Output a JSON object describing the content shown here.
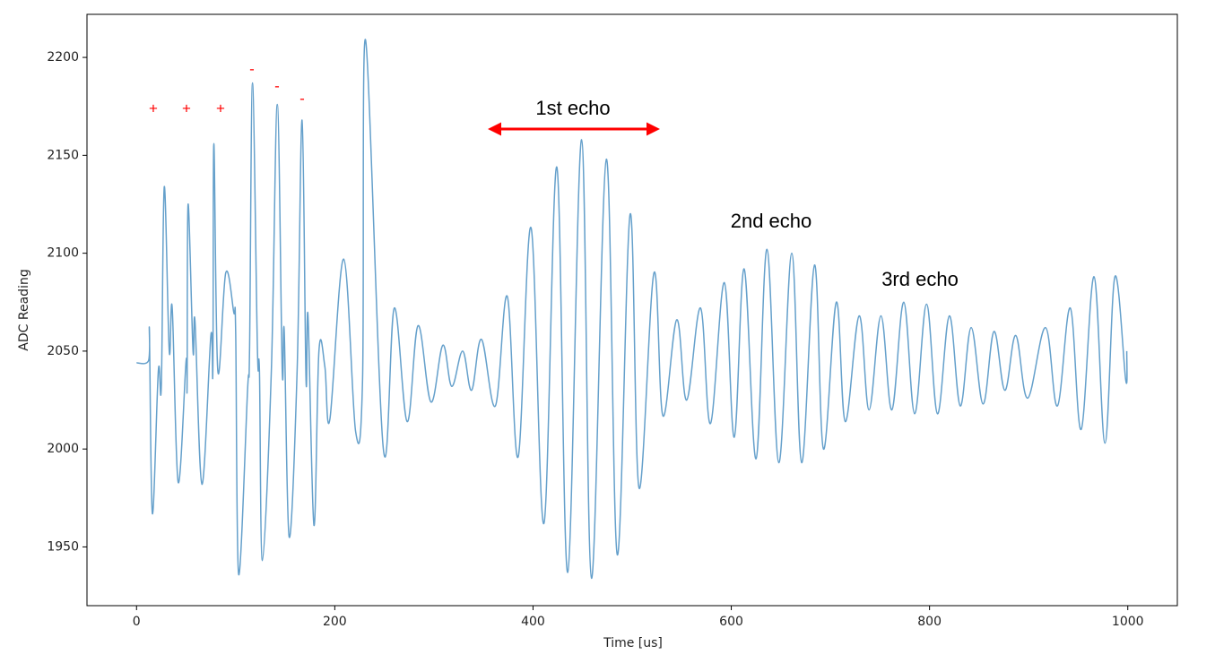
{
  "chart_data": {
    "type": "line",
    "x_label": "Time [us]",
    "y_label": "ADC Reading",
    "xlim": [
      -50,
      1050
    ],
    "ylim": [
      1920,
      2222
    ],
    "xticks": [
      0,
      200,
      400,
      600,
      800,
      1000
    ],
    "yticks": [
      1950,
      2000,
      2050,
      2100,
      2150,
      2200
    ],
    "grid": false,
    "series": [
      {
        "color": "#65a0cb",
        "x": [
          0,
          12,
          13,
          16,
          22,
          25,
          28,
          33,
          36,
          42,
          50,
          51,
          52,
          57,
          59,
          66,
          75,
          77,
          78,
          82,
          90,
          98,
          100,
          103,
          112,
          114,
          117,
          122,
          124,
          127,
          136,
          142,
          147,
          149,
          154,
          162,
          167,
          171,
          173,
          179,
          184,
          190,
          195,
          209,
          221,
          228,
          231,
          249,
          260,
          273,
          284,
          297,
          309,
          318,
          329,
          338,
          348,
          362,
          374,
          385,
          398,
          411,
          424,
          435,
          449,
          459,
          474,
          485,
          498,
          507,
          522,
          531,
          545,
          555,
          569,
          579,
          593,
          603,
          613,
          625,
          636,
          648,
          661,
          671,
          684,
          693,
          706,
          715,
          729,
          739,
          751,
          762,
          774,
          785,
          797,
          808,
          820,
          831,
          842,
          854,
          865,
          876,
          887,
          899,
          917,
          929,
          942,
          953,
          966,
          977,
          987,
          998,
          999
        ],
        "values": [
          2044,
          2045,
          2058,
          1967,
          2040,
          2032,
          2134,
          2050,
          2072,
          1983,
          2045,
          2032,
          2125,
          2050,
          2065,
          1982,
          2058,
          2040,
          2156,
          2040,
          2090,
          2070,
          2060,
          1936,
          2030,
          2050,
          2187,
          2050,
          2040,
          1943,
          2040,
          2176,
          2040,
          2060,
          1955,
          2040,
          2168,
          2035,
          2068,
          1961,
          2050,
          2042,
          2015,
          2097,
          2009,
          2035,
          2209,
          2000,
          2072,
          2014,
          2063,
          2024,
          2053,
          2032,
          2050,
          2030,
          2056,
          2022,
          2078,
          1996,
          2113,
          1962,
          2144,
          1937,
          2158,
          1934,
          2148,
          1946,
          2120,
          1980,
          2090,
          2017,
          2066,
          2025,
          2072,
          2013,
          2085,
          2006,
          2092,
          1995,
          2102,
          1993,
          2100,
          1993,
          2094,
          2000,
          2075,
          2014,
          2068,
          2020,
          2068,
          2020,
          2075,
          2018,
          2074,
          2018,
          2068,
          2022,
          2062,
          2023,
          2060,
          2030,
          2058,
          2026,
          2062,
          2022,
          2072,
          2010,
          2088,
          2003,
          2088,
          2035,
          2050
        ]
      }
    ],
    "annotations": [
      {
        "text": "+"
      },
      {
        "text": "+"
      },
      {
        "text": "+"
      },
      {
        "text": "-"
      },
      {
        "text": "-"
      },
      {
        "text": "-"
      },
      {
        "text": "1st echo"
      },
      {
        "text": "2nd echo"
      },
      {
        "text": "3rd echo"
      }
    ]
  }
}
